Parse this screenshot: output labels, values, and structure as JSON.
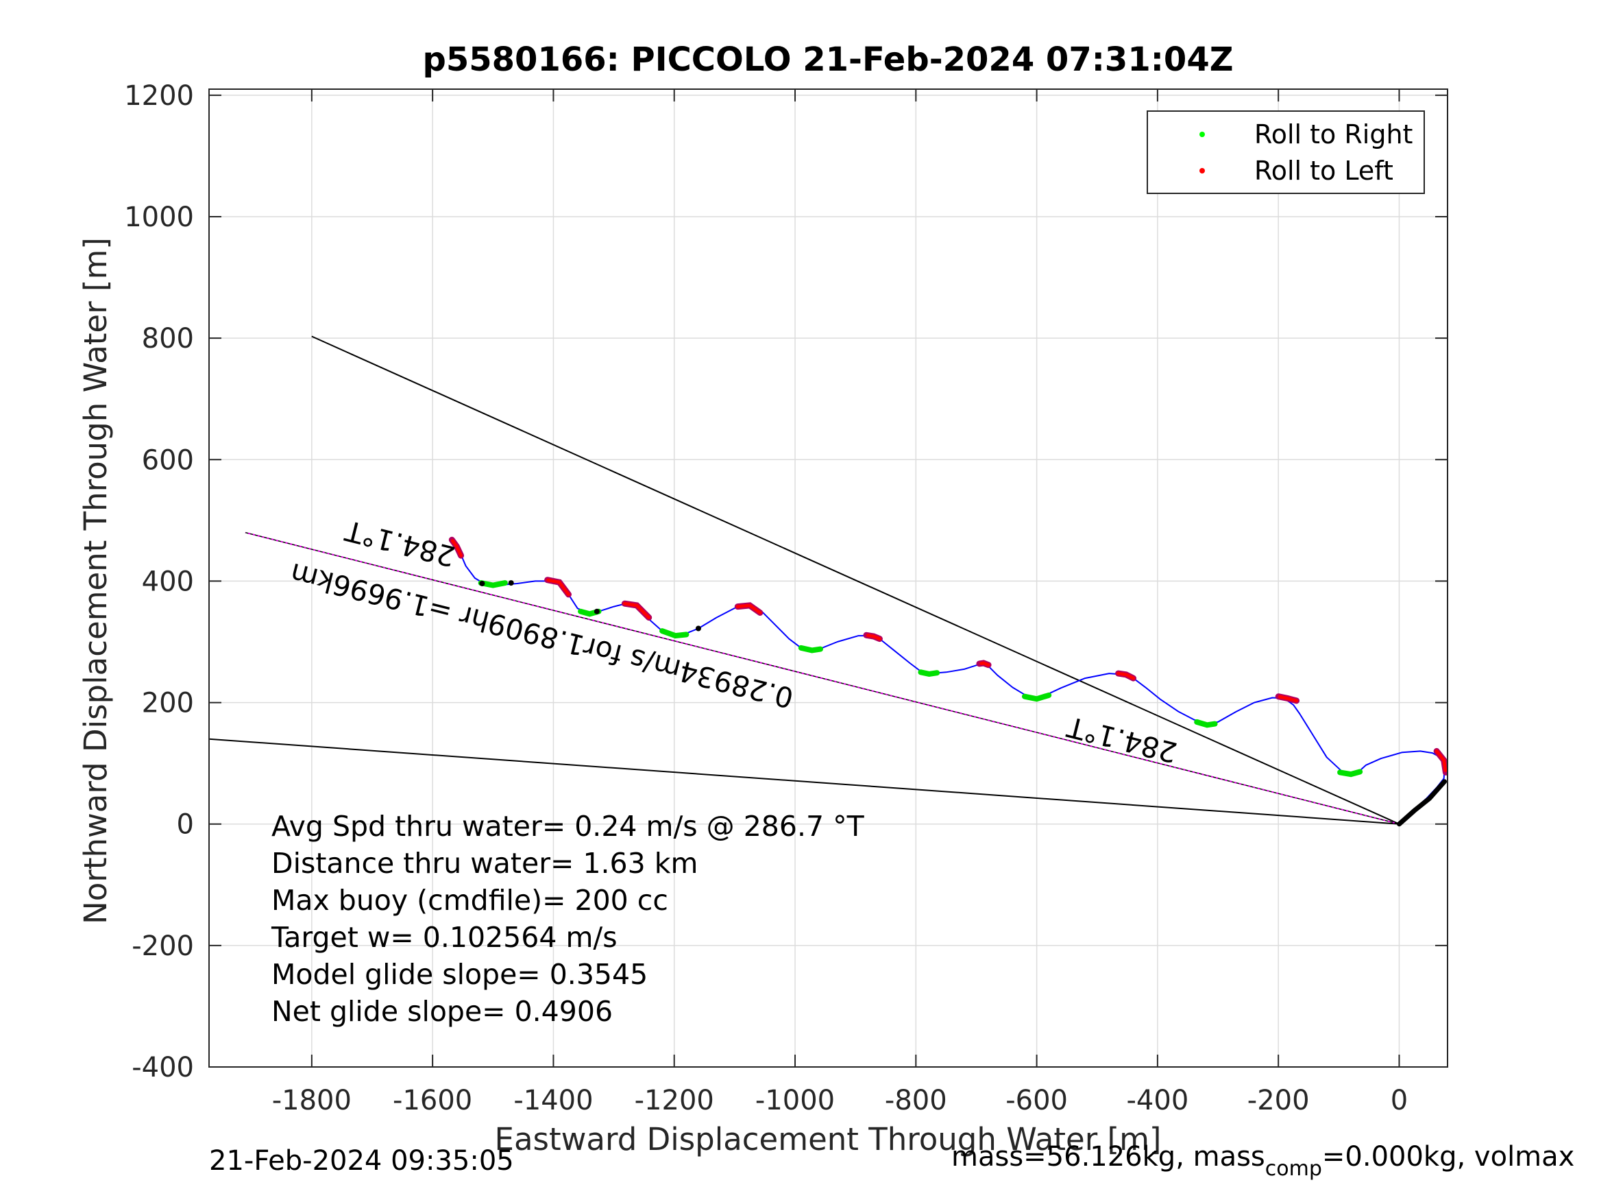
{
  "chart_data": {
    "type": "line",
    "title": "p5580166: PICCOLO 21-Feb-2024 07:31:04Z",
    "xlabel": "Eastward Displacement Through Water [m]",
    "ylabel": "Northward Displacement Through Water [m]",
    "xlim": [
      -1970,
      80
    ],
    "ylim": [
      -400,
      1210
    ],
    "xticks": [
      -1800,
      -1600,
      -1400,
      -1200,
      -1000,
      -800,
      -600,
      -400,
      -200,
      0
    ],
    "yticks": [
      -400,
      -200,
      0,
      200,
      400,
      600,
      800,
      1000,
      1200
    ],
    "grid": true,
    "legend": {
      "placement": "top-right",
      "entries": [
        {
          "label": "Roll to Right",
          "color": "#00ff00"
        },
        {
          "label": "Roll to Left",
          "color": "#ff0000"
        }
      ]
    },
    "colors": {
      "track": "#0000ff",
      "right_roll": "#00e000",
      "left_roll": "#ff0000",
      "left_roll_edge": "#b00060",
      "heading": "#e000e0",
      "reference": "#000000"
    },
    "track": [
      [
        0,
        0
      ],
      [
        20,
        20
      ],
      [
        45,
        42
      ],
      [
        62,
        60
      ],
      [
        74,
        75
      ],
      [
        75,
        95
      ],
      [
        68,
        110
      ],
      [
        55,
        117
      ],
      [
        35,
        120
      ],
      [
        5,
        118
      ],
      [
        -30,
        108
      ],
      [
        -55,
        97
      ],
      [
        -65,
        88
      ],
      [
        -80,
        84
      ],
      [
        -95,
        87
      ],
      [
        -120,
        110
      ],
      [
        -145,
        150
      ],
      [
        -165,
        182
      ],
      [
        -175,
        196
      ],
      [
        -190,
        207
      ],
      [
        -210,
        208
      ],
      [
        -240,
        200
      ],
      [
        -270,
        185
      ],
      [
        -300,
        168
      ],
      [
        -318,
        165
      ],
      [
        -340,
        172
      ],
      [
        -365,
        185
      ],
      [
        -395,
        205
      ],
      [
        -420,
        225
      ],
      [
        -440,
        240
      ],
      [
        -455,
        246
      ],
      [
        -480,
        248
      ],
      [
        -520,
        240
      ],
      [
        -560,
        224
      ],
      [
        -590,
        210
      ],
      [
        -600,
        207
      ],
      [
        -615,
        210
      ],
      [
        -640,
        225
      ],
      [
        -665,
        245
      ],
      [
        -682,
        262
      ],
      [
        -695,
        263
      ],
      [
        -720,
        255
      ],
      [
        -750,
        250
      ],
      [
        -775,
        248
      ],
      [
        -790,
        250
      ],
      [
        -810,
        265
      ],
      [
        -835,
        285
      ],
      [
        -860,
        305
      ],
      [
        -875,
        310
      ],
      [
        -895,
        310
      ],
      [
        -930,
        300
      ],
      [
        -960,
        288
      ],
      [
        -975,
        287
      ],
      [
        -990,
        290
      ],
      [
        -1010,
        305
      ],
      [
        -1035,
        330
      ],
      [
        -1055,
        350
      ],
      [
        -1075,
        360
      ],
      [
        -1095,
        358
      ],
      [
        -1130,
        340
      ],
      [
        -1160,
        322
      ],
      [
        -1185,
        312
      ],
      [
        -1200,
        311
      ],
      [
        -1220,
        318
      ],
      [
        -1245,
        340
      ],
      [
        -1265,
        360
      ],
      [
        -1280,
        363
      ],
      [
        -1300,
        358
      ],
      [
        -1325,
        350
      ],
      [
        -1340,
        347
      ],
      [
        -1360,
        355
      ],
      [
        -1375,
        378
      ],
      [
        -1390,
        398
      ],
      [
        -1410,
        400
      ],
      [
        -1430,
        400
      ],
      [
        -1460,
        396
      ],
      [
        -1495,
        393
      ],
      [
        -1515,
        396
      ],
      [
        -1530,
        405
      ],
      [
        -1545,
        425
      ],
      [
        -1555,
        448
      ],
      [
        -1565,
        467
      ]
    ],
    "left_roll_segments": [
      [
        [
          62,
          120
        ],
        [
          74,
          105
        ],
        [
          77,
          85
        ]
      ],
      [
        [
          -170,
          203
        ],
        [
          -185,
          207
        ],
        [
          -200,
          210
        ]
      ],
      [
        [
          -440,
          240
        ],
        [
          -452,
          246
        ],
        [
          -465,
          248
        ]
      ],
      [
        [
          -680,
          262
        ],
        [
          -688,
          265
        ],
        [
          -695,
          264
        ]
      ],
      [
        [
          -860,
          305
        ],
        [
          -870,
          309
        ],
        [
          -882,
          311
        ]
      ],
      [
        [
          -1058,
          348
        ],
        [
          -1075,
          360
        ],
        [
          -1095,
          358
        ]
      ],
      [
        [
          -1242,
          340
        ],
        [
          -1262,
          360
        ],
        [
          -1282,
          363
        ]
      ],
      [
        [
          -1375,
          378
        ],
        [
          -1390,
          398
        ],
        [
          -1410,
          402
        ]
      ],
      [
        [
          -1553,
          442
        ],
        [
          -1560,
          457
        ],
        [
          -1568,
          468
        ]
      ]
    ],
    "right_roll_segments": [
      [
        [
          -65,
          86
        ],
        [
          -80,
          82
        ],
        [
          -98,
          85
        ]
      ],
      [
        [
          -305,
          165
        ],
        [
          -318,
          163
        ],
        [
          -335,
          168
        ]
      ],
      [
        [
          -580,
          212
        ],
        [
          -600,
          206
        ],
        [
          -620,
          210
        ]
      ],
      [
        [
          -765,
          249
        ],
        [
          -778,
          247
        ],
        [
          -792,
          250
        ]
      ],
      [
        [
          -958,
          288
        ],
        [
          -972,
          286
        ],
        [
          -990,
          290
        ]
      ],
      [
        [
          -1180,
          312
        ],
        [
          -1198,
          310
        ],
        [
          -1220,
          318
        ]
      ],
      [
        [
          -1325,
          350
        ],
        [
          -1340,
          346
        ],
        [
          -1355,
          350
        ]
      ],
      [
        [
          -1480,
          397
        ],
        [
          -1500,
          393
        ],
        [
          -1520,
          397
        ]
      ]
    ],
    "black_markers": [
      [
        -1518,
        396
      ],
      [
        -1470,
        397
      ],
      [
        -1328,
        350
      ],
      [
        -1160,
        322
      ]
    ],
    "heading_line": [
      [
        0,
        0
      ],
      [
        -1910,
        480
      ]
    ],
    "reference_lines": [
      [
        [
          0,
          0
        ],
        [
          -1800,
          803
        ]
      ],
      [
        [
          0,
          0
        ],
        [
          -1970,
          140
        ]
      ]
    ],
    "black_start_segment": [
      [
        0,
        0
      ],
      [
        25,
        22
      ],
      [
        50,
        42
      ],
      [
        75,
        70
      ]
    ],
    "annotations": [
      {
        "text": "284.1°T",
        "x": -1560,
        "y": 455,
        "angle_deg": 194.1
      },
      {
        "text": "284.1°T",
        "x": -365,
        "y": 132,
        "angle_deg": 194.1
      },
      {
        "text": "0.28934m/s for1.8909hr =1.9696km",
        "x": -1000,
        "y": 222,
        "angle_deg": 194.1
      }
    ]
  },
  "stats": {
    "lines": [
      "Avg Spd thru water=  0.24 m/s @ 286.7 °T",
      "Distance thru water=  1.63 km",
      "Max buoy (cmdfile)= 200 cc",
      "Target w= 0.102564 m/s",
      "Model glide slope= 0.3545",
      "Net glide slope= 0.4906"
    ]
  },
  "footer": {
    "left": "21-Feb-2024 09:35:05",
    "right_prefix": "mass=56.126kg, mass",
    "right_sub": "comp",
    "right_suffix": "=0.000kg, volmax"
  }
}
